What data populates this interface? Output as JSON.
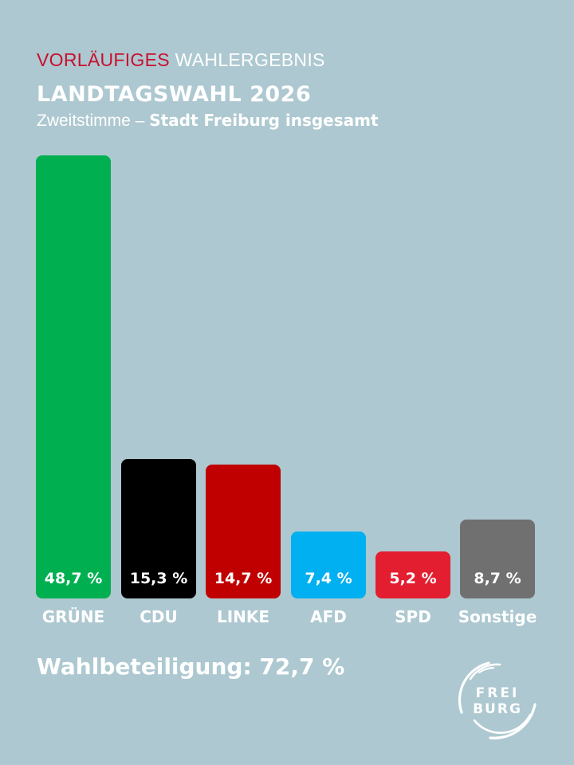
{
  "header": {
    "kicker_red": "VORLÄUFIGES",
    "kicker_white": "WAHLERGEBNIS",
    "title": "LANDTAGSWAHL 2026",
    "subtitle_prefix": "Zweitstimme – ",
    "subtitle_bold": "Stadt Freiburg insgesamt"
  },
  "footer": {
    "turnout": "Wahlbeteiligung: 72,7 %",
    "logo_line1": "FREI",
    "logo_line2": "BURG"
  },
  "chart_data": {
    "type": "bar",
    "title": "LANDTAGSWAHL 2026 – Zweitstimme – Stadt Freiburg insgesamt",
    "subtitle": "VORLÄUFIGES WAHLERGEBNIS",
    "categories": [
      "GRÜNE",
      "CDU",
      "LINKE",
      "AFD",
      "SPD",
      "Sonstige"
    ],
    "values": [
      48.7,
      15.3,
      14.7,
      7.4,
      5.2,
      8.7
    ],
    "labels": [
      "48,7 %",
      "15,3 %",
      "14,7 %",
      "7,4 %",
      "5,2 %",
      "8,7 %"
    ],
    "colors": [
      "#00b050",
      "#000000",
      "#c00000",
      "#00b0f0",
      "#e31e30",
      "#707070"
    ],
    "xlabel": "",
    "ylabel": "%",
    "ylim": [
      0,
      50
    ],
    "grid": false,
    "legend": "none",
    "annotations": [
      "Wahlbeteiligung: 72,7 %"
    ]
  },
  "colors": {
    "background": "#adc8d0",
    "accent_red": "#c8102e",
    "text": "#ffffff"
  }
}
